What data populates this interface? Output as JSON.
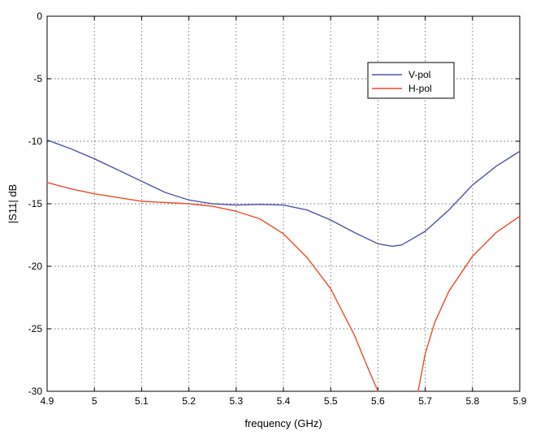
{
  "chart_data": {
    "type": "line",
    "xlabel": "frequency (GHz)",
    "ylabel": "|S11| dB",
    "xlim": [
      4.9,
      5.9
    ],
    "ylim": [
      -30,
      0
    ],
    "x_ticks": [
      4.9,
      5.0,
      5.1,
      5.2,
      5.3,
      5.4,
      5.5,
      5.6,
      5.7,
      5.8,
      5.9
    ],
    "x_tick_labels": [
      "4.9",
      "5",
      "5.1",
      "5.2",
      "5.3",
      "5.4",
      "5.5",
      "5.6",
      "5.7",
      "5.8",
      "5.9"
    ],
    "y_ticks": [
      0,
      -5,
      -10,
      -15,
      -20,
      -25,
      -30
    ],
    "y_tick_labels": [
      "0",
      "-5",
      "-10",
      "-15",
      "-20",
      "-25",
      "-30"
    ],
    "grid": true,
    "legend_position": "top-right",
    "series": [
      {
        "name": "V-pol",
        "color": "#4a56a8",
        "points": [
          [
            4.9,
            -9.9
          ],
          [
            4.95,
            -10.6
          ],
          [
            5.0,
            -11.4
          ],
          [
            5.05,
            -12.3
          ],
          [
            5.1,
            -13.2
          ],
          [
            5.15,
            -14.1
          ],
          [
            5.2,
            -14.7
          ],
          [
            5.25,
            -15.0
          ],
          [
            5.3,
            -15.1
          ],
          [
            5.35,
            -15.05
          ],
          [
            5.4,
            -15.1
          ],
          [
            5.45,
            -15.5
          ],
          [
            5.5,
            -16.3
          ],
          [
            5.55,
            -17.3
          ],
          [
            5.6,
            -18.2
          ],
          [
            5.63,
            -18.4
          ],
          [
            5.65,
            -18.3
          ],
          [
            5.7,
            -17.2
          ],
          [
            5.75,
            -15.5
          ],
          [
            5.8,
            -13.5
          ],
          [
            5.85,
            -12.0
          ],
          [
            5.9,
            -10.8
          ]
        ]
      },
      {
        "name": "H-pol",
        "color": "#ef4a2a",
        "points": [
          [
            4.9,
            -13.3
          ],
          [
            4.95,
            -13.8
          ],
          [
            5.0,
            -14.2
          ],
          [
            5.05,
            -14.5
          ],
          [
            5.1,
            -14.8
          ],
          [
            5.15,
            -14.9
          ],
          [
            5.2,
            -15.0
          ],
          [
            5.25,
            -15.2
          ],
          [
            5.3,
            -15.6
          ],
          [
            5.35,
            -16.2
          ],
          [
            5.4,
            -17.4
          ],
          [
            5.45,
            -19.3
          ],
          [
            5.5,
            -21.8
          ],
          [
            5.55,
            -25.5
          ],
          [
            5.575,
            -27.8
          ],
          [
            5.6,
            -30.0
          ]
        ]
      },
      {
        "name": "H-pol",
        "color": "#ef4a2a",
        "points": [
          [
            5.685,
            -30.0
          ],
          [
            5.7,
            -27.0
          ],
          [
            5.72,
            -24.5
          ],
          [
            5.75,
            -22.0
          ],
          [
            5.8,
            -19.2
          ],
          [
            5.85,
            -17.3
          ],
          [
            5.9,
            -16.0
          ]
        ]
      }
    ]
  }
}
